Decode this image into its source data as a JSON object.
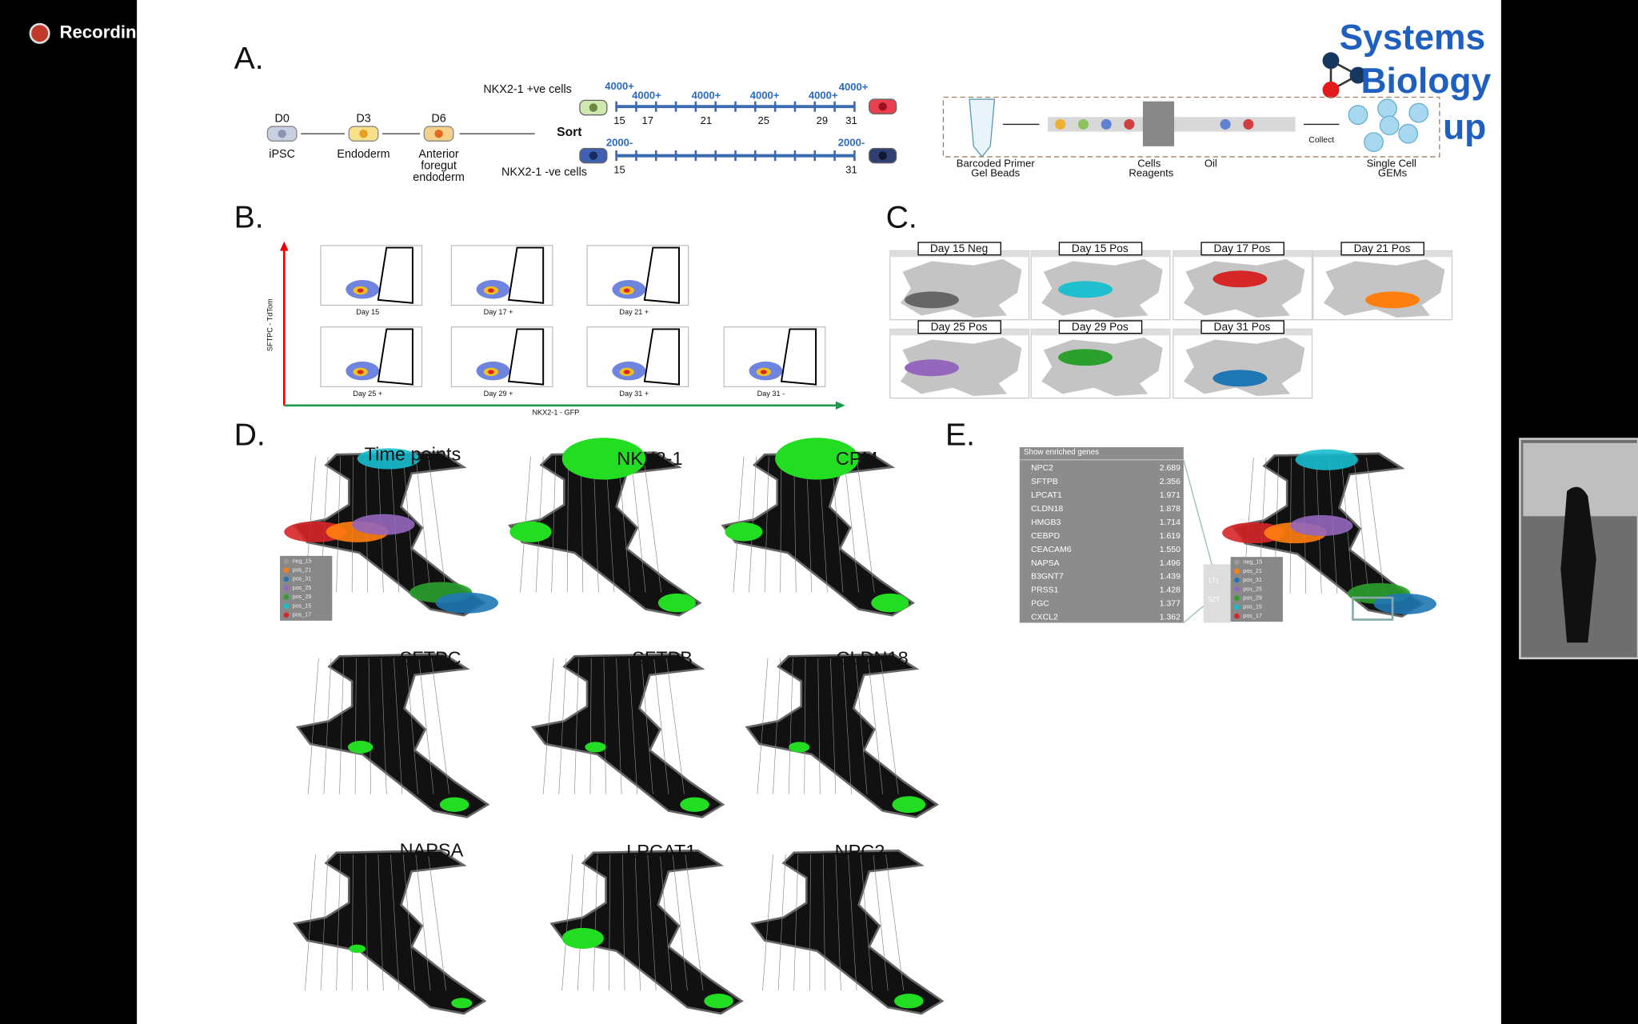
{
  "recording": {
    "label": "Recording"
  },
  "logo": {
    "lines": [
      "Systems",
      "Biology",
      "up"
    ]
  },
  "panel_a": {
    "label": "A.",
    "stages": [
      {
        "day": "D0",
        "name_lines": [
          "iPSC"
        ]
      },
      {
        "day": "D3",
        "name_lines": [
          "Endoderm"
        ]
      },
      {
        "day": "D6",
        "name_lines": [
          "Anterior",
          "foregut",
          "endoderm"
        ]
      }
    ],
    "sort": "Sort",
    "pos_label": "NKX2-1 +ve cells",
    "neg_label": "NKX2-1 -ve cells",
    "pos_counts": [
      "4000+",
      "4000+",
      "4000+",
      "4000+",
      "4000+",
      "4000+"
    ],
    "pos_days": [
      "15",
      "17",
      "21",
      "25",
      "29",
      "31"
    ],
    "neg_counts": [
      "2000-",
      "2000-"
    ],
    "neg_days": [
      "15",
      "31"
    ],
    "gem_labels": [
      "Barcoded Primer",
      "Gel Beads",
      "Cells",
      "Reagents",
      "Oil",
      "Collect",
      "Single Cell",
      "GEMs"
    ]
  },
  "panel_b": {
    "label": "B.",
    "y_axis": "SFTPC - TdTom",
    "x_axis": "NKX2-1 - GFP",
    "plots": [
      "Day 15",
      "Day 17 +",
      "Day 21 +",
      "Day 25 +",
      "Day 29 +",
      "Day 31 +",
      "Day 31 -"
    ]
  },
  "panel_c": {
    "label": "C.",
    "plots": [
      {
        "title": "Day 15 Neg",
        "color": "#666666"
      },
      {
        "title": "Day 15 Pos",
        "color": "#1fbfcf"
      },
      {
        "title": "Day 17 Pos",
        "color": "#d62728"
      },
      {
        "title": "Day 21 Pos",
        "color": "#ff7f0e"
      },
      {
        "title": "Day 25 Pos",
        "color": "#9467bd"
      },
      {
        "title": "Day 29 Pos",
        "color": "#2ca02c"
      },
      {
        "title": "Day 31 Pos",
        "color": "#1f77b4"
      }
    ]
  },
  "panel_d": {
    "label": "D.",
    "plots": [
      "Time points",
      "NKX2-1",
      "CPM",
      "SFTPC",
      "SFTPB",
      "CLDN18",
      "NAPSA",
      "LPCAT1",
      "NPC2"
    ],
    "legend": [
      {
        "name": "neg_15",
        "color": "#9a9a9a"
      },
      {
        "name": "pos_21",
        "color": "#ff7f0e"
      },
      {
        "name": "pos_31",
        "color": "#1f77b4"
      },
      {
        "name": "pos_25",
        "color": "#9467bd"
      },
      {
        "name": "pos_29",
        "color": "#2ca02c"
      },
      {
        "name": "pos_15",
        "color": "#17becf"
      },
      {
        "name": "pos_17",
        "color": "#d62728"
      }
    ]
  },
  "panel_e": {
    "label": "E.",
    "table_header": "Show enriched genes",
    "rows": [
      [
        "NPC2",
        "2.689"
      ],
      [
        "SFTPB",
        "2.356"
      ],
      [
        "LPCAT1",
        "1.971"
      ],
      [
        "CLDN18",
        "1.878"
      ],
      [
        "HMGB3",
        "1.714"
      ],
      [
        "CEBPD",
        "1.619"
      ],
      [
        "CEACAM6",
        "1.550"
      ],
      [
        "NAPSA",
        "1.496"
      ],
      [
        "B3GNT7",
        "1.439"
      ],
      [
        "PRSS1",
        "1.428"
      ],
      [
        "PGC",
        "1.377"
      ],
      [
        "CXCL2",
        "1.362"
      ]
    ],
    "side_labels": [
      "LT1",
      "SZT"
    ]
  }
}
